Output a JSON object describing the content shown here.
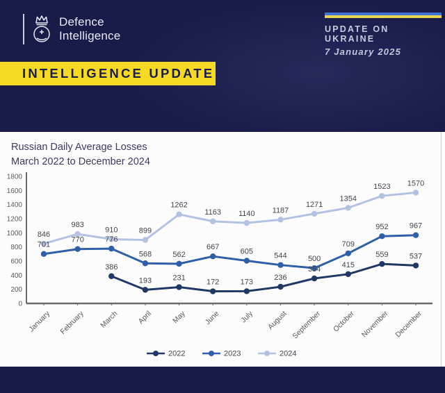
{
  "header": {
    "logo": {
      "line1": "Defence",
      "line2": "Intelligence"
    },
    "banner": "INTELLIGENCE UPDATE",
    "topic": "UPDATE ON UKRAINE",
    "date": "7 January 2025",
    "flag_colors": {
      "blue": "#3e73d8",
      "yellow": "#e5d44f"
    }
  },
  "chart": {
    "title_line1": "Russian Daily Average Losses",
    "title_line2": "March 2022 to December 2024"
  },
  "chart_data": {
    "type": "line",
    "title": "Russian Daily Average Losses March 2022 to December 2024",
    "categories": [
      "January",
      "February",
      "March",
      "April",
      "May",
      "June",
      "July",
      "August",
      "September",
      "October",
      "November",
      "December"
    ],
    "series": [
      {
        "name": "2022",
        "color": "#1f3864",
        "values": [
          null,
          null,
          386,
          193,
          231,
          172,
          173,
          236,
          354,
          415,
          559,
          537
        ]
      },
      {
        "name": "2023",
        "color": "#2e5fa8",
        "values": [
          701,
          770,
          776,
          568,
          562,
          667,
          605,
          544,
          500,
          709,
          952,
          967
        ]
      },
      {
        "name": "2024",
        "color": "#b4c2e2",
        "values": [
          846,
          983,
          910,
          899,
          1262,
          1163,
          1140,
          1187,
          1271,
          1354,
          1523,
          1570
        ]
      }
    ],
    "ylim": [
      0,
      1800
    ],
    "ytick_step": 200,
    "grid": false,
    "data_labels": true,
    "legend_position": "bottom",
    "axis_color": "#6a6a6a",
    "tick_label_color": "#595959",
    "data_label_color": "#43454d"
  }
}
